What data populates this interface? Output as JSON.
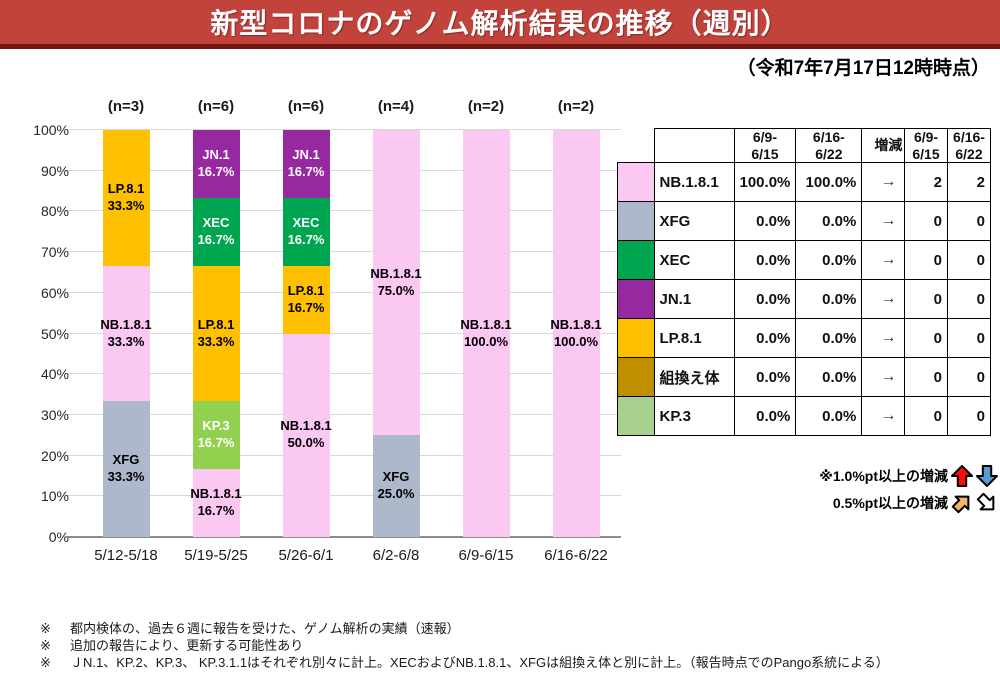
{
  "title": "新型コロナのゲノム解析結果の推移（週別）",
  "timestamp": "（令和7年7月17日12時時点）",
  "chart_data": {
    "type": "bar",
    "stacked": true,
    "ylim": [
      0,
      100
    ],
    "grid": true,
    "yticks": [
      "0%",
      "10%",
      "20%",
      "30%",
      "40%",
      "50%",
      "60%",
      "70%",
      "80%",
      "90%",
      "100%"
    ],
    "categories": [
      "5/12-5/18",
      "5/19-5/25",
      "5/26-6/1",
      "6/2-6/8",
      "6/9-6/15",
      "6/16-6/22"
    ],
    "n_labels": [
      "(n=3)",
      "(n=6)",
      "(n=6)",
      "(n=4)",
      "(n=2)",
      "(n=2)"
    ],
    "variants": {
      "NB.1.8.1": {
        "color": "#fbc8f2",
        "text": "#000000"
      },
      "XFG": {
        "color": "#adb9ca",
        "text": "#000000"
      },
      "XEC": {
        "color": "#00a550",
        "text": "#ffffff"
      },
      "JN.1": {
        "color": "#9628a0",
        "text": "#ffffff"
      },
      "LP.8.1": {
        "color": "#ffc000",
        "text": "#000000"
      },
      "組換え体": {
        "color": "#bf8f00",
        "text": "#000000"
      },
      "KP.3": {
        "color": "#92d050",
        "text": "#ffffff"
      }
    },
    "bars": [
      {
        "category": "5/12-5/18",
        "n": "(n=3)",
        "segments": [
          {
            "name": "XFG",
            "value": 33.3,
            "label": "33.3%"
          },
          {
            "name": "NB.1.8.1",
            "value": 33.3,
            "label": "33.3%"
          },
          {
            "name": "LP.8.1",
            "value": 33.3,
            "label": "33.3%"
          }
        ]
      },
      {
        "category": "5/19-5/25",
        "n": "(n=6)",
        "segments": [
          {
            "name": "NB.1.8.1",
            "value": 16.7,
            "label": "16.7%"
          },
          {
            "name": "KP.3",
            "value": 16.7,
            "label": "16.7%"
          },
          {
            "name": "LP.8.1",
            "value": 33.3,
            "label": "33.3%"
          },
          {
            "name": "XEC",
            "value": 16.7,
            "label": "16.7%"
          },
          {
            "name": "JN.1",
            "value": 16.7,
            "label": "16.7%"
          }
        ]
      },
      {
        "category": "5/26-6/1",
        "n": "(n=6)",
        "segments": [
          {
            "name": "NB.1.8.1",
            "value": 50.0,
            "label": "50.0%"
          },
          {
            "name": "LP.8.1",
            "value": 16.7,
            "label": "16.7%"
          },
          {
            "name": "XEC",
            "value": 16.7,
            "label": "16.7%"
          },
          {
            "name": "JN.1",
            "value": 16.7,
            "label": "16.7%"
          }
        ]
      },
      {
        "category": "6/2-6/8",
        "n": "(n=4)",
        "segments": [
          {
            "name": "XFG",
            "value": 25.0,
            "label": "25.0%"
          },
          {
            "name": "NB.1.8.1",
            "value": 75.0,
            "label": "75.0%"
          }
        ]
      },
      {
        "category": "6/9-6/15",
        "n": "(n=2)",
        "segments": [
          {
            "name": "NB.1.8.1",
            "value": 100.0,
            "label": "100.0%"
          }
        ]
      },
      {
        "category": "6/16-6/22",
        "n": "(n=2)",
        "segments": [
          {
            "name": "NB.1.8.1",
            "value": 100.0,
            "label": "100.0%"
          }
        ]
      }
    ]
  },
  "table": {
    "col_headers": [
      [
        "",
        ""
      ],
      [
        "6/9-",
        "6/15"
      ],
      [
        "6/16-",
        "6/22"
      ],
      [
        "増減",
        ""
      ]
    ],
    "rows": [
      {
        "variant": "NB.1.8.1",
        "swatch": "#fbc8f2",
        "pct_w1": "100.0%",
        "pct_w2": "100.0%",
        "trend": "→",
        "count_w1": "2",
        "count_w2": "2"
      },
      {
        "variant": "XFG",
        "swatch": "#adb9ca",
        "pct_w1": "0.0%",
        "pct_w2": "0.0%",
        "trend": "→",
        "count_w1": "0",
        "count_w2": "0"
      },
      {
        "variant": "XEC",
        "swatch": "#00a550",
        "pct_w1": "0.0%",
        "pct_w2": "0.0%",
        "trend": "→",
        "count_w1": "0",
        "count_w2": "0"
      },
      {
        "variant": "JN.1",
        "swatch": "#9628a0",
        "pct_w1": "0.0%",
        "pct_w2": "0.0%",
        "trend": "→",
        "count_w1": "0",
        "count_w2": "0"
      },
      {
        "variant": "LP.8.1",
        "swatch": "#ffc000",
        "pct_w1": "0.0%",
        "pct_w2": "0.0%",
        "trend": "→",
        "count_w1": "0",
        "count_w2": "0"
      },
      {
        "variant": "組換え体",
        "swatch": "#bf8f00",
        "pct_w1": "0.0%",
        "pct_w2": "0.0%",
        "trend": "→",
        "count_w1": "0",
        "count_w2": "0"
      },
      {
        "variant": "KP.3",
        "swatch": "#a9d18e",
        "pct_w1": "0.0%",
        "pct_w2": "0.0%",
        "trend": "→",
        "count_w1": "0",
        "count_w2": "0"
      }
    ]
  },
  "counts_table": {
    "col_headers": [
      [
        "6/9-",
        "6/15"
      ],
      [
        "6/16-",
        "6/22"
      ]
    ]
  },
  "legend_notes": {
    "line1": "※1.0%pt以上の増減",
    "line2": "0.5%pt以上の増減",
    "arrow_colors": {
      "up": "#fe0d0d",
      "down": "#5b9bd5",
      "up_right": "#f6b26b",
      "down_right": "#ffffff"
    }
  },
  "footnotes": [
    {
      "marker": "※",
      "text": "都内検体の、過去６週に報告を受けた、ゲノム解析の実績（速報）"
    },
    {
      "marker": "※",
      "text": "追加の報告により、更新する可能性あり"
    },
    {
      "marker": "※",
      "text": "ＪN.1、KP.2、KP.3、 KP.3.1.1はそれぞれ別々に計上。XECおよびNB.1.8.1、XFGは組換え体と別に計上。（報告時点でのPango系統による）"
    }
  ],
  "colors": {
    "title_bar": "#c2423c",
    "title_bar_border": "#701712",
    "gridline": "#d9d9d9",
    "axis": "#8c8c8c"
  }
}
